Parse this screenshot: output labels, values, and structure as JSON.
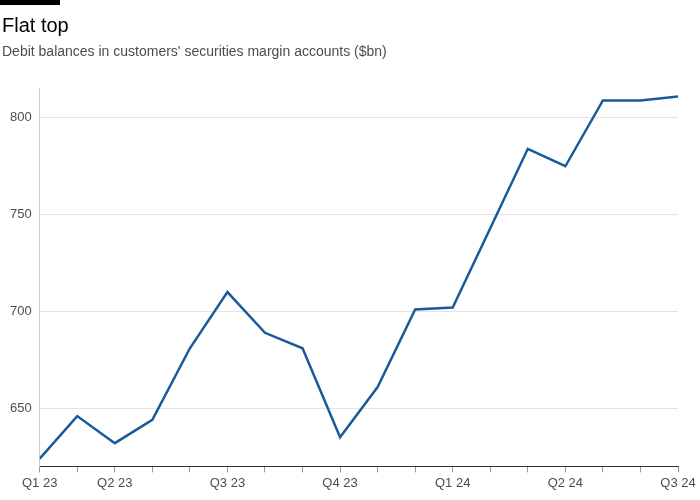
{
  "chart_data": {
    "type": "line",
    "title": "Flat top",
    "subtitle": "Debit balances in customers' securities margin accounts ($bn)",
    "categories": [
      "Q1 23",
      null,
      "Q2 23",
      null,
      null,
      "Q3 23",
      null,
      null,
      "Q4 23",
      null,
      null,
      "Q1 24",
      null,
      null,
      "Q2 24",
      null,
      null,
      "Q3 24"
    ],
    "values": [
      624,
      646,
      632,
      644,
      681,
      710,
      689,
      681,
      635,
      661,
      701,
      702,
      743,
      784,
      775,
      809,
      809,
      811
    ],
    "color": "#1a5a9c",
    "ylim": [
      620,
      815
    ],
    "yticks": [
      650,
      700,
      750,
      800
    ],
    "grid": true
  }
}
